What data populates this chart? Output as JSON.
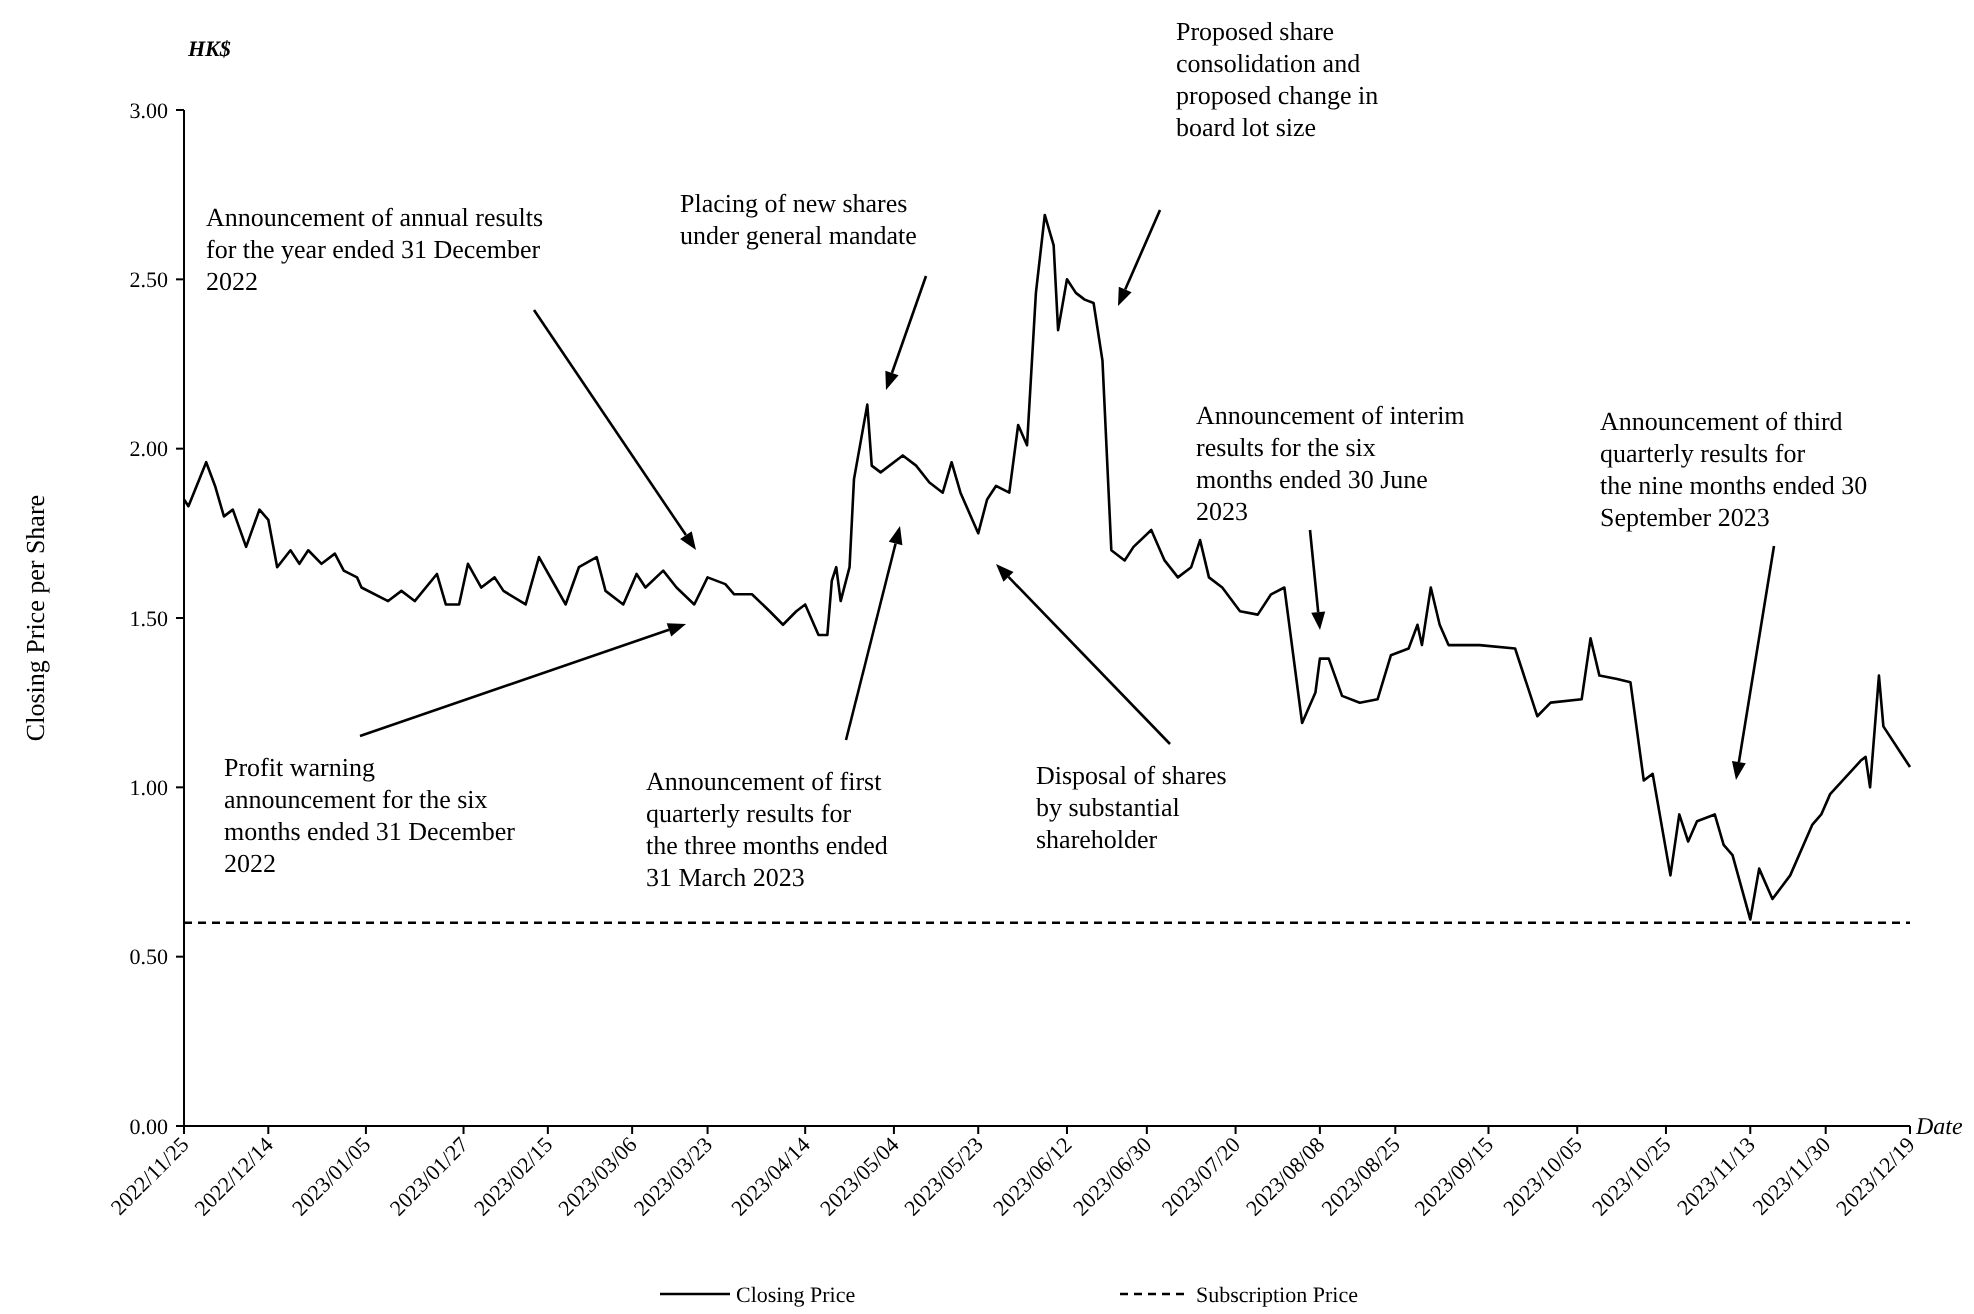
{
  "chart_data": {
    "type": "line",
    "xlabel": "Date",
    "ylabel": "Closing Price per Share",
    "xlim": [
      "2022-11-25",
      "2023-12-19"
    ],
    "xticks": [
      {
        "value": "2022-11-25",
        "label": "2022/11/25"
      },
      {
        "value": "2022-12-14",
        "label": "2022/12/14"
      },
      {
        "value": "2023-01-05",
        "label": "2023/01/05"
      },
      {
        "value": "2023-01-27",
        "label": "2023/01/27"
      },
      {
        "value": "2023-02-15",
        "label": "2023/02/15"
      },
      {
        "value": "2023-03-06",
        "label": "2023/03/06"
      },
      {
        "value": "2023-03-23",
        "label": "2023/03/23"
      },
      {
        "value": "2023-04-14",
        "label": "2023/04/14"
      },
      {
        "value": "2023-05-04",
        "label": "2023/05/04"
      },
      {
        "value": "2023-05-23",
        "label": "2023/05/23"
      },
      {
        "value": "2023-06-12",
        "label": "2023/06/12"
      },
      {
        "value": "2023-06-30",
        "label": "2023/06/30"
      },
      {
        "value": "2023-07-20",
        "label": "2023/07/20"
      },
      {
        "value": "2023-08-08",
        "label": "2023/08/08"
      },
      {
        "value": "2023-08-25",
        "label": "2023/08/25"
      },
      {
        "value": "2023-09-15",
        "label": "2023/09/15"
      },
      {
        "value": "2023-10-05",
        "label": "2023/10/05"
      },
      {
        "value": "2023-10-25",
        "label": "2023/10/25"
      },
      {
        "value": "2023-11-13",
        "label": "2023/11/13"
      },
      {
        "value": "2023-11-30",
        "label": "2023/11/30"
      },
      {
        "value": "2023-12-19",
        "label": "2023/12/19"
      }
    ],
    "ylim": [
      0,
      3
    ],
    "yticks": [
      {
        "value": 0,
        "label": "0.00"
      },
      {
        "value": 0.5,
        "label": "0.50"
      },
      {
        "value": 1,
        "label": "1.00"
      },
      {
        "value": 1.5,
        "label": "1.50"
      },
      {
        "value": 2,
        "label": "2.00"
      },
      {
        "value": 2.5,
        "label": "2.50"
      },
      {
        "value": 3,
        "label": "3.00"
      }
    ],
    "legend": "bottom",
    "series": [
      {
        "name": "Closing Price",
        "color": "#000000",
        "line_style": "solid",
        "x": [
          "2022-11-25",
          "2022-11-26",
          "2022-11-30",
          "2022-12-02",
          "2022-12-04",
          "2022-12-06",
          "2022-12-09",
          "2022-12-12",
          "2022-12-14",
          "2022-12-16",
          "2022-12-19",
          "2022-12-21",
          "2022-12-23",
          "2022-12-26",
          "2022-12-29",
          "2022-12-31",
          "2023-01-03",
          "2023-01-04",
          "2023-01-10",
          "2023-01-13",
          "2023-01-16",
          "2023-01-21",
          "2023-01-23",
          "2023-01-26",
          "2023-01-28",
          "2023-01-31",
          "2023-02-03",
          "2023-02-05",
          "2023-02-10",
          "2023-02-13",
          "2023-02-16",
          "2023-02-19",
          "2023-02-22",
          "2023-02-26",
          "2023-02-28",
          "2023-03-04",
          "2023-03-07",
          "2023-03-09",
          "2023-03-13",
          "2023-03-16",
          "2023-03-20",
          "2023-03-23",
          "2023-03-27",
          "2023-03-29",
          "2023-04-02",
          "2023-04-06",
          "2023-04-09",
          "2023-04-12",
          "2023-04-14",
          "2023-04-17",
          "2023-04-19",
          "2023-04-20",
          "2023-04-21",
          "2023-04-22",
          "2023-04-24",
          "2023-04-25",
          "2023-04-28",
          "2023-04-29",
          "2023-05-01",
          "2023-05-06",
          "2023-05-09",
          "2023-05-12",
          "2023-05-15",
          "2023-05-17",
          "2023-05-19",
          "2023-05-23",
          "2023-05-25",
          "2023-05-27",
          "2023-05-30",
          "2023-06-01",
          "2023-06-03",
          "2023-06-05",
          "2023-06-07",
          "2023-06-09",
          "2023-06-10",
          "2023-06-12",
          "2023-06-14",
          "2023-06-16",
          "2023-06-18",
          "2023-06-20",
          "2023-06-22",
          "2023-06-25",
          "2023-06-27",
          "2023-07-01",
          "2023-07-04",
          "2023-07-07",
          "2023-07-10",
          "2023-07-12",
          "2023-07-14",
          "2023-07-17",
          "2023-07-21",
          "2023-07-25",
          "2023-07-28",
          "2023-07-31",
          "2023-08-01",
          "2023-08-04",
          "2023-08-07",
          "2023-08-08",
          "2023-08-10",
          "2023-08-13",
          "2023-08-17",
          "2023-08-21",
          "2023-08-24",
          "2023-08-28",
          "2023-08-30",
          "2023-08-31",
          "2023-09-02",
          "2023-09-04",
          "2023-09-06",
          "2023-09-13",
          "2023-09-21",
          "2023-09-26",
          "2023-09-29",
          "2023-10-06",
          "2023-10-08",
          "2023-10-10",
          "2023-10-14",
          "2023-10-17",
          "2023-10-20",
          "2023-10-22",
          "2023-10-26",
          "2023-10-28",
          "2023-10-30",
          "2023-11-01",
          "2023-11-05",
          "2023-11-07",
          "2023-11-09",
          "2023-11-13",
          "2023-11-15",
          "2023-11-18",
          "2023-11-22",
          "2023-11-27",
          "2023-11-29",
          "2023-12-01",
          "2023-12-08",
          "2023-12-09",
          "2023-12-10",
          "2023-12-12",
          "2023-12-13",
          "2023-12-17",
          "2023-12-19"
        ],
        "values": [
          1.85,
          1.83,
          1.96,
          1.89,
          1.8,
          1.82,
          1.71,
          1.82,
          1.79,
          1.65,
          1.7,
          1.66,
          1.7,
          1.66,
          1.69,
          1.64,
          1.62,
          1.59,
          1.55,
          1.58,
          1.55,
          1.63,
          1.54,
          1.54,
          1.66,
          1.59,
          1.62,
          1.58,
          1.54,
          1.68,
          1.61,
          1.54,
          1.65,
          1.68,
          1.58,
          1.54,
          1.63,
          1.59,
          1.64,
          1.59,
          1.54,
          1.62,
          1.6,
          1.57,
          1.57,
          1.52,
          1.48,
          1.52,
          1.54,
          1.45,
          1.45,
          1.61,
          1.65,
          1.55,
          1.65,
          1.91,
          2.13,
          1.95,
          1.93,
          1.98,
          1.95,
          1.9,
          1.87,
          1.96,
          1.87,
          1.75,
          1.85,
          1.89,
          1.87,
          2.07,
          2.01,
          2.46,
          2.69,
          2.6,
          2.35,
          2.5,
          2.46,
          2.44,
          2.43,
          2.26,
          1.7,
          1.67,
          1.71,
          1.76,
          1.67,
          1.62,
          1.65,
          1.73,
          1.62,
          1.59,
          1.52,
          1.51,
          1.57,
          1.59,
          1.49,
          1.19,
          1.28,
          1.38,
          1.38,
          1.27,
          1.25,
          1.26,
          1.39,
          1.41,
          1.48,
          1.42,
          1.59,
          1.48,
          1.42,
          1.42,
          1.41,
          1.21,
          1.25,
          1.26,
          1.44,
          1.33,
          1.32,
          1.31,
          1.02,
          1.04,
          0.74,
          0.92,
          0.84,
          0.9,
          0.92,
          0.83,
          0.8,
          0.61,
          0.76,
          0.67,
          0.74,
          0.89,
          0.92,
          0.98,
          1.08,
          1.09,
          1.0,
          1.33,
          1.18,
          1.1,
          1.06
        ]
      },
      {
        "name": "Subscription Price",
        "color": "#000000",
        "line_style": "dashed",
        "x": [
          "2022-11-25",
          "2023-12-19"
        ],
        "values": [
          0.6,
          0.6
        ]
      }
    ],
    "annotations": [
      "HK$",
      "Announcement of annual results for the year ended 31 December 2022",
      "Profit warning announcement for the six months ended 31 December 2022",
      "Placing of new shares under general mandate",
      "Announcement of first quarterly results for the three months ended 31 March 2023",
      "Disposal of shares by substantial shareholder",
      "Proposed share consolidation and proposed change in board lot size",
      "Announcement of interim results for the six months ended 30 June 2023",
      "Announcement of third quarterly results for the nine months ended 30 September 2023"
    ]
  }
}
